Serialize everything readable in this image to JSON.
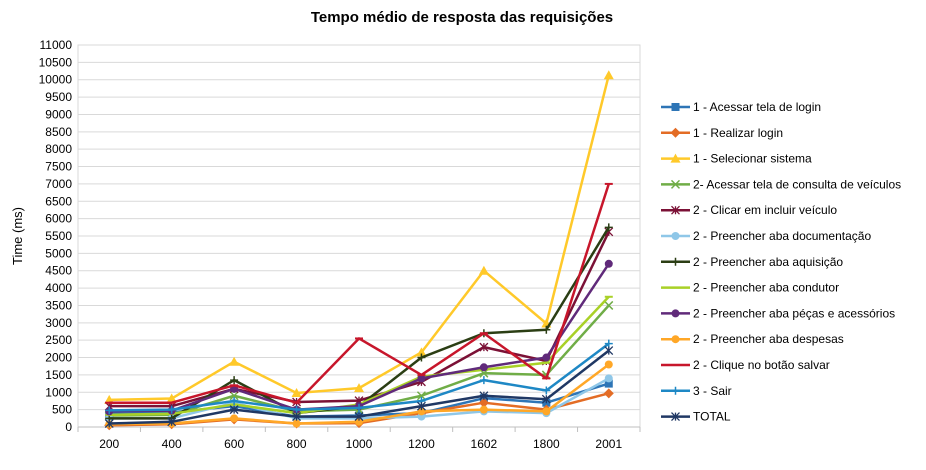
{
  "chart_data": {
    "type": "line",
    "title": "Tempo médio de resposta das requisições",
    "xlabel": "",
    "ylabel": "Time (ms)",
    "categories": [
      "200",
      "400",
      "600",
      "800",
      "1000",
      "1200",
      "1602",
      "1800",
      "2001"
    ],
    "ylim": [
      0,
      11000
    ],
    "ytick_step": 500,
    "grid": true,
    "legend_position": "right",
    "series": [
      {
        "name": "1 - Acessar tela de login",
        "color": "#2e75b6",
        "marker": "square",
        "values": [
          380,
          420,
          600,
          300,
          330,
          400,
          830,
          700,
          1250
        ]
      },
      {
        "name": "1 - Realizar login",
        "color": "#e36c25",
        "marker": "diamond",
        "values": [
          50,
          80,
          220,
          100,
          110,
          400,
          700,
          500,
          970
        ]
      },
      {
        "name": "1 - Selecionar sistema",
        "color": "#ffc92a",
        "marker": "triangle",
        "values": [
          780,
          820,
          1880,
          980,
          1120,
          2150,
          4500,
          2980,
          10130
        ]
      },
      {
        "name": "2- Acessar tela de consulta de veículos",
        "color": "#70ad47",
        "marker": "x",
        "values": [
          330,
          350,
          900,
          450,
          500,
          900,
          1550,
          1500,
          3500
        ]
      },
      {
        "name": "2 - Clicar em incluir veículo",
        "color": "#7b1136",
        "marker": "star",
        "values": [
          600,
          600,
          1100,
          720,
          760,
          1300,
          2300,
          1900,
          5620
        ]
      },
      {
        "name": "2 - Preencher aba documentação",
        "color": "#8fc7e8",
        "marker": "circle",
        "values": [
          250,
          250,
          700,
          250,
          250,
          300,
          450,
          400,
          1400
        ]
      },
      {
        "name": "2 - Preencher aba aquisição",
        "color": "#2b3e14",
        "marker": "plus",
        "values": [
          250,
          250,
          1350,
          400,
          600,
          2000,
          2700,
          2800,
          5750
        ]
      },
      {
        "name": "2 - Preencher aba condutor",
        "color": "#a9d127",
        "marker": "line",
        "values": [
          350,
          380,
          650,
          400,
          650,
          1450,
          1650,
          1850,
          3750
        ]
      },
      {
        "name": "2 - Preencher aba péças e acessórios",
        "color": "#602a7a",
        "marker": "circle",
        "values": [
          450,
          470,
          1100,
          500,
          600,
          1400,
          1720,
          2000,
          4700
        ]
      },
      {
        "name": "2 - Preencher aba despesas",
        "color": "#ffa727",
        "marker": "circle",
        "values": [
          80,
          100,
          250,
          100,
          150,
          450,
          500,
          450,
          1800
        ]
      },
      {
        "name": "2 - Clique no botão salvar",
        "color": "#c7162b",
        "marker": "line",
        "values": [
          700,
          700,
          1200,
          700,
          2550,
          1500,
          2700,
          1400,
          7000
        ]
      },
      {
        "name": "3 - Sair",
        "color": "#1e88c5",
        "marker": "plus",
        "values": [
          480,
          500,
          750,
          500,
          550,
          750,
          1350,
          1050,
          2400
        ]
      },
      {
        "name": "TOTAL",
        "color": "#203864",
        "marker": "star",
        "values": [
          100,
          150,
          500,
          300,
          300,
          600,
          900,
          800,
          2200
        ]
      }
    ]
  }
}
